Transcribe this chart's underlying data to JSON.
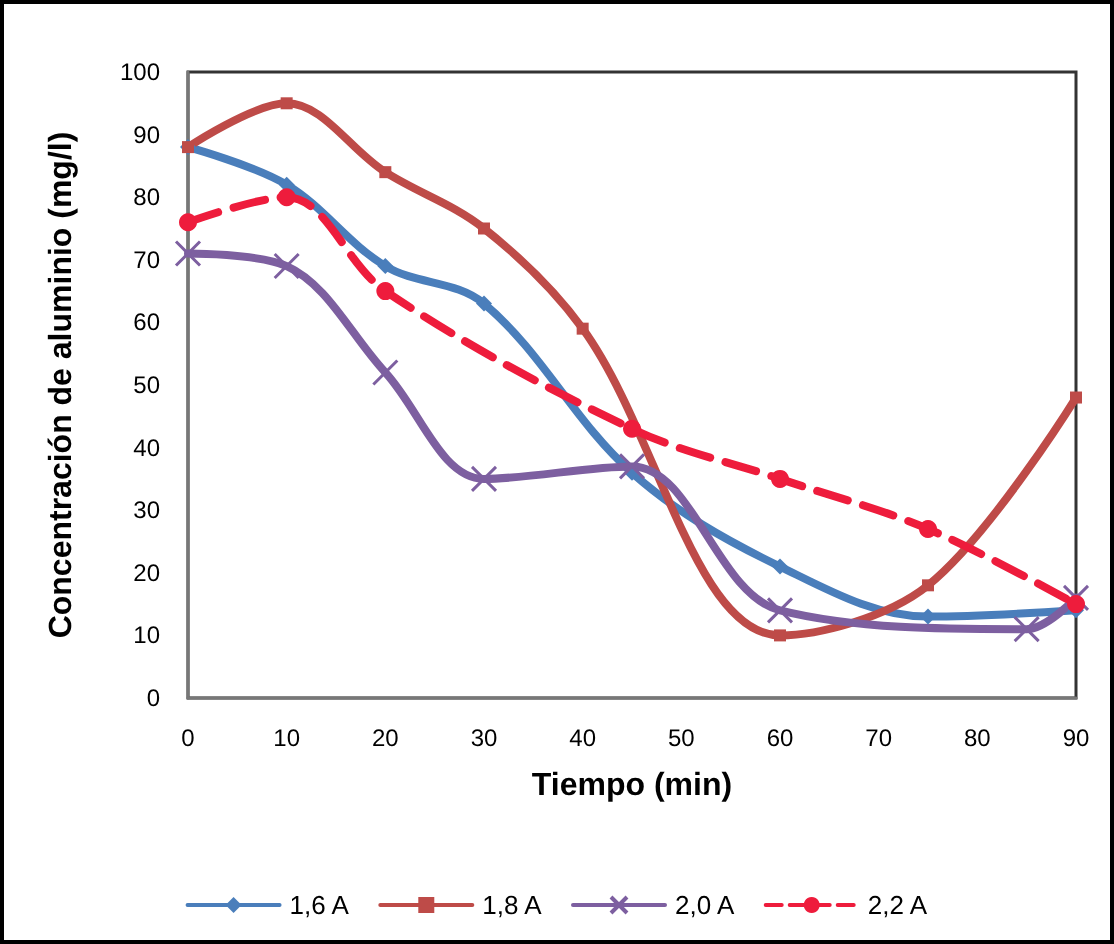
{
  "chart_data": {
    "type": "line",
    "xlabel": "Tiempo (min)",
    "ylabel": "Concentración de aluminio (mg/l)",
    "xlim": [
      0,
      90
    ],
    "xticks": [
      0,
      10,
      20,
      30,
      40,
      50,
      60,
      70,
      80,
      90
    ],
    "ylim": [
      0,
      100
    ],
    "yticks": [
      0,
      10,
      20,
      30,
      40,
      50,
      60,
      70,
      80,
      90,
      100
    ],
    "grid": false,
    "legend": "bottom",
    "series": [
      {
        "name": "1,6 A",
        "color": "#4a7ebb",
        "marker": "diamond",
        "line_style": "solid",
        "x": [
          0,
          10,
          20,
          30,
          45,
          60,
          75,
          90
        ],
        "values": [
          88,
          82,
          69,
          63,
          36,
          21,
          13,
          14
        ]
      },
      {
        "name": "1,8 A",
        "color": "#be4b48",
        "marker": "square",
        "line_style": "solid",
        "x": [
          0,
          10,
          20,
          30,
          40,
          60,
          75,
          90
        ],
        "values": [
          88,
          95,
          84,
          75,
          59,
          10,
          18,
          48
        ]
      },
      {
        "name": "2,0 A",
        "color": "#7d5fa0",
        "marker": "cross",
        "line_style": "solid",
        "x": [
          0,
          10,
          20,
          30,
          45,
          60,
          85,
          90
        ],
        "values": [
          71,
          69,
          52,
          35,
          37,
          14,
          11,
          16
        ]
      },
      {
        "name": "2,2 A",
        "color": "#ee1c3c",
        "marker": "circle",
        "line_style": "dashed",
        "x": [
          0,
          10,
          20,
          45,
          60,
          75,
          90
        ],
        "values": [
          76,
          80,
          65,
          43,
          35,
          27,
          15
        ]
      }
    ]
  }
}
